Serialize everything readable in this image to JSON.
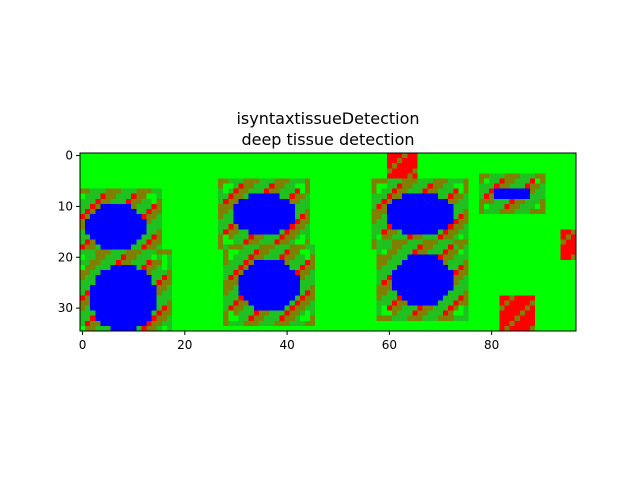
{
  "chart_data": {
    "type": "heatmap",
    "title": [
      "isyntaxtissueDetection",
      "deep tissue detection"
    ],
    "xlabel": "",
    "ylabel": "",
    "xlim": [
      -0.5,
      96.5
    ],
    "ylim": [
      34.5,
      -0.5
    ],
    "xticks": [
      0,
      20,
      40,
      60,
      80
    ],
    "yticks": [
      0,
      10,
      20,
      30
    ],
    "grid": false,
    "legend": "none",
    "image_shape": [
      35,
      97
    ],
    "colors": {
      "background": "#00ff00",
      "tissue": "#0000ff",
      "border_red": "#ff0000",
      "border_mixed": "#808000",
      "border_green": "#20c020"
    },
    "regions": [
      {
        "label": "tissue",
        "shape": "blob",
        "x": [
          1,
          12
        ],
        "y": [
          10,
          18
        ],
        "fill": "#0000ff"
      },
      {
        "label": "tissue",
        "shape": "blob",
        "x": [
          30,
          41
        ],
        "y": [
          8,
          15
        ],
        "fill": "#0000ff"
      },
      {
        "label": "tissue",
        "shape": "blob",
        "x": [
          60,
          72
        ],
        "y": [
          8,
          15
        ],
        "fill": "#0000ff"
      },
      {
        "label": "tissue",
        "shape": "blob",
        "x": [
          81,
          87
        ],
        "y": [
          7,
          8
        ],
        "fill": "#0000ff"
      },
      {
        "label": "tissue",
        "shape": "blob",
        "x": [
          2,
          14
        ],
        "y": [
          22,
          34
        ],
        "fill": "#0000ff"
      },
      {
        "label": "tissue",
        "shape": "blob",
        "x": [
          31,
          42
        ],
        "y": [
          21,
          30
        ],
        "fill": "#0000ff"
      },
      {
        "label": "tissue",
        "shape": "blob",
        "x": [
          61,
          72
        ],
        "y": [
          20,
          29
        ],
        "fill": "#0000ff"
      },
      {
        "label": "edge",
        "shape": "rect",
        "x": [
          60,
          65
        ],
        "y": [
          0,
          4
        ],
        "fill": "#ff0000"
      },
      {
        "label": "edge",
        "shape": "rect",
        "x": [
          82,
          88
        ],
        "y": [
          28,
          34
        ],
        "fill": "#ff0000"
      },
      {
        "label": "edge",
        "shape": "rect",
        "x": [
          94,
          96
        ],
        "y": [
          15,
          20
        ],
        "fill": "#ff0000"
      }
    ]
  }
}
